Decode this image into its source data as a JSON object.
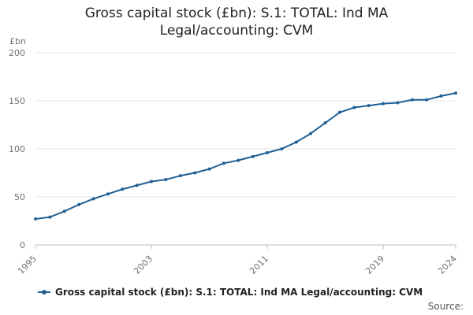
{
  "chart_data": {
    "type": "line",
    "title": "Gross capital stock (£bn): S.1: TOTAL: Ind MA Legal/accounting: CVM",
    "title_lines": [
      "Gross capital stock (£bn): S.1: TOTAL: Ind MA",
      "Legal/accounting: CVM"
    ],
    "ylabel": "£bn",
    "xlabel": "",
    "ylim": [
      0,
      200
    ],
    "yticks": [
      0,
      50,
      100,
      150,
      200
    ],
    "xticks": [
      1995,
      2003,
      2011,
      2019,
      2024
    ],
    "x": [
      1995,
      1996,
      1997,
      1998,
      1999,
      2000,
      2001,
      2002,
      2003,
      2004,
      2005,
      2006,
      2007,
      2008,
      2009,
      2010,
      2011,
      2012,
      2013,
      2014,
      2015,
      2016,
      2017,
      2018,
      2019,
      2020,
      2021,
      2022,
      2023,
      2024
    ],
    "series": [
      {
        "name": "Gross capital stock (£bn): S.1: TOTAL: Ind MA Legal/accounting: CVM",
        "color": "#206095",
        "values": [
          27,
          29,
          35,
          42,
          48,
          53,
          58,
          62,
          66,
          68,
          72,
          75,
          79,
          85,
          88,
          92,
          96,
          100,
          107,
          116,
          127,
          138,
          143,
          145,
          147,
          148,
          151,
          151,
          155,
          158
        ]
      }
    ],
    "grid": true,
    "legend": "bottom"
  },
  "legend_label": "Gross capital stock (£bn): S.1: TOTAL: Ind MA Legal/accounting: CVM",
  "source_label": "Source:"
}
